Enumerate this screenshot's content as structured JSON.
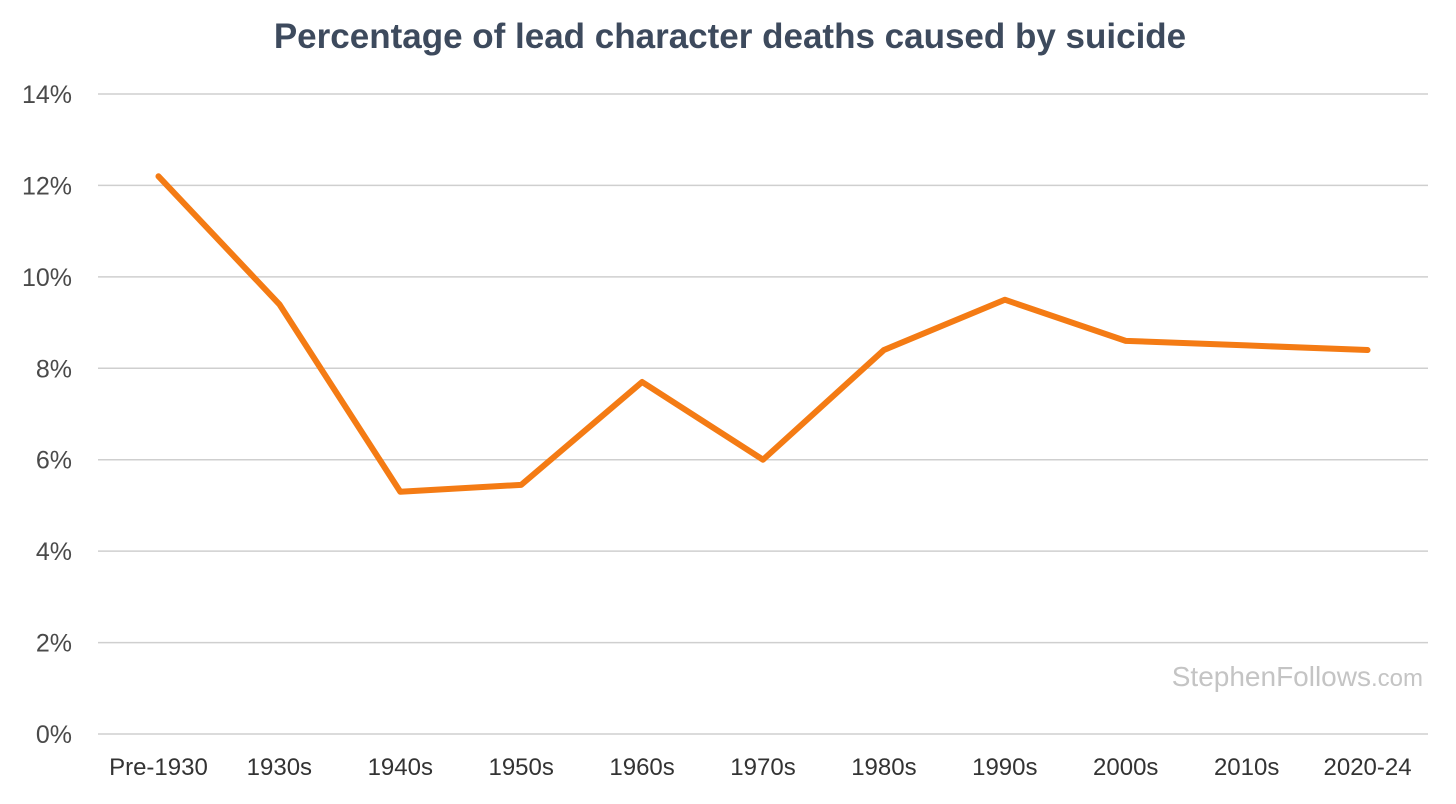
{
  "chart_data": {
    "type": "line",
    "title": "Percentage of lead character deaths caused by suicide",
    "xlabel": "",
    "ylabel": "",
    "categories": [
      "Pre-1930",
      "1930s",
      "1940s",
      "1950s",
      "1960s",
      "1970s",
      "1980s",
      "1990s",
      "2000s",
      "2010s",
      "2020-24"
    ],
    "series": [
      {
        "color": "#f47b14",
        "values": [
          12.2,
          9.4,
          5.3,
          5.45,
          7.7,
          6.0,
          8.4,
          9.5,
          8.6,
          8.5,
          8.4
        ]
      }
    ],
    "ylim": [
      0,
      14
    ],
    "yticks": [
      0,
      2,
      4,
      6,
      8,
      10,
      12,
      14
    ],
    "ytick_labels": [
      "0%",
      "2%",
      "4%",
      "6%",
      "8%",
      "10%",
      "12%",
      "14%"
    ],
    "grid": true,
    "legend": "none"
  },
  "watermark": {
    "name": "StephenFollows",
    "suffix": ".com"
  },
  "colors": {
    "title": "#3d4a5d",
    "line": "#f47b14",
    "grid": "#cfcfcf",
    "watermark": "#c4c4c4"
  }
}
